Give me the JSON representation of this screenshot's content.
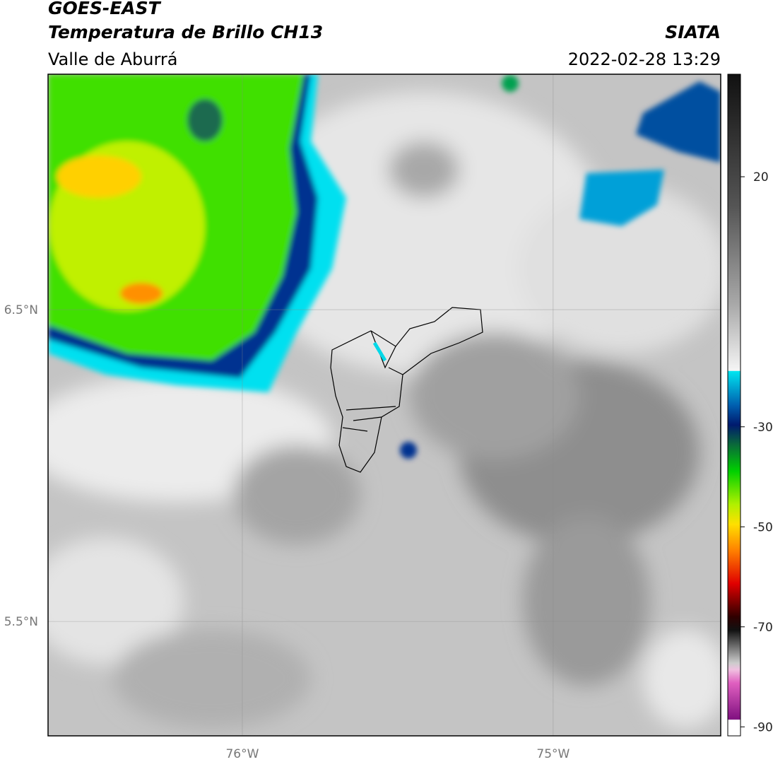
{
  "header": {
    "title": "GOES-EAST",
    "subtitle": "Temperatura de Brillo CH13",
    "region": "Valle de Aburrá",
    "source": "SIATA",
    "timestamp": "2022-02-28 13:29"
  },
  "map": {
    "xlim": [
      -76.625,
      -74.461
    ],
    "ylim": [
      5.133,
      7.255
    ],
    "xticks": [
      {
        "value": -76,
        "label": "76°W"
      },
      {
        "value": -75,
        "label": "75°W"
      }
    ],
    "yticks": [
      {
        "value": 6.5,
        "label": "6.5°N"
      },
      {
        "value": 5.5,
        "label": "5.5°N"
      }
    ],
    "grid": true
  },
  "colorbar": {
    "lim": [
      40.5,
      -91.8
    ],
    "ticks": [
      20,
      -30,
      -50,
      -70,
      -90
    ]
  }
}
